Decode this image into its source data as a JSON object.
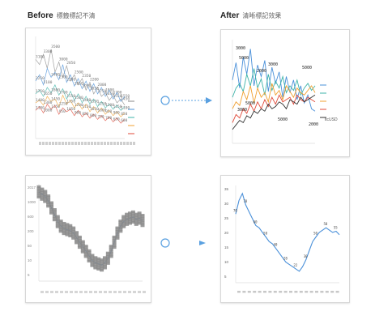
{
  "labels": {
    "before": "Before",
    "before_sub": "標籤標記不清",
    "after": "After",
    "after_sub": "清晰標記效果"
  },
  "colors": {
    "blue": "#4a90d9",
    "gray": "#8a8a8a",
    "orange": "#f0a030",
    "red": "#e04a3a",
    "teal": "#3cb3a8",
    "dark": "#333333",
    "accent": "#5aa0e0"
  },
  "chart_data": [
    {
      "type": "line",
      "id": "before-multi",
      "series": [
        {
          "name": "",
          "values": [
            62,
            58,
            66,
            55,
            70,
            52,
            60,
            48,
            57,
            45,
            50,
            42,
            47,
            38,
            44,
            35,
            40,
            33,
            36,
            30,
            34,
            28,
            31,
            26
          ]
        },
        {
          "name": "",
          "values": [
            45,
            50,
            42,
            55,
            48,
            52,
            46,
            58,
            44,
            50,
            41,
            47,
            39,
            45,
            37,
            43,
            35,
            40,
            33,
            38,
            31,
            36,
            29,
            33
          ]
        },
        {
          "name": "",
          "values": [
            35,
            38,
            33,
            40,
            36,
            42,
            34,
            39,
            31,
            37,
            30,
            35,
            28,
            33,
            27,
            31,
            25,
            29,
            24,
            27,
            23,
            26,
            22,
            25
          ]
        },
        {
          "name": "",
          "values": [
            28,
            30,
            26,
            33,
            29,
            31,
            25,
            34,
            27,
            30,
            24,
            28,
            23,
            27,
            21,
            25,
            20,
            24,
            19,
            22,
            18,
            21,
            17,
            20
          ]
        },
        {
          "name": "",
          "values": [
            22,
            25,
            20,
            27,
            23,
            26,
            19,
            24,
            21,
            23,
            18,
            22,
            17,
            20,
            16,
            19,
            15,
            18,
            14,
            17,
            13,
            16,
            12,
            15
          ]
        }
      ],
      "legend": [
        "",
        "",
        "",
        "",
        ""
      ]
    },
    {
      "type": "line",
      "id": "after-multi",
      "series": [
        {
          "name": "",
          "values": [
            55,
            70,
            48,
            75,
            60,
            82,
            50,
            68,
            58,
            72,
            45,
            66,
            52,
            62,
            40,
            58,
            44,
            55,
            38,
            50,
            35,
            42,
            30,
            28
          ]
        },
        {
          "name": "",
          "values": [
            40,
            48,
            52,
            45,
            60,
            50,
            65,
            48,
            56,
            42,
            60,
            46,
            54,
            48,
            58,
            44,
            50,
            46,
            55,
            42,
            48,
            52,
            46,
            50
          ]
        },
        {
          "name": "",
          "values": [
            30,
            36,
            33,
            45,
            38,
            50,
            35,
            48,
            40,
            44,
            36,
            52,
            42,
            46,
            38,
            50,
            45,
            40,
            48,
            44,
            42,
            46,
            50,
            44
          ]
        },
        {
          "name": "",
          "values": [
            18,
            25,
            22,
            30,
            26,
            34,
            28,
            36,
            30,
            38,
            32,
            40,
            34,
            42,
            36,
            38,
            40,
            34,
            42,
            38,
            36,
            40,
            38,
            36
          ]
        },
        {
          "name": "",
          "values": [
            12,
            16,
            20,
            18,
            24,
            22,
            28,
            26,
            30,
            28,
            34,
            30,
            32,
            36,
            34,
            30,
            38,
            36,
            34,
            40,
            36,
            38,
            40,
            42
          ]
        }
      ],
      "legend": [
        "",
        "",
        "",
        "",
        "ltcUSD"
      ],
      "annotations": [
        "3000",
        "5000",
        "3000",
        "2000",
        "5000",
        "5000",
        "3000",
        "5000",
        "2000"
      ]
    },
    {
      "type": "line",
      "id": "before-single",
      "values": [
        88,
        86,
        84,
        80,
        74,
        68,
        62,
        58,
        56,
        55,
        54,
        52,
        48,
        44,
        40,
        36,
        32,
        28,
        26,
        25,
        24,
        26,
        30,
        36,
        44,
        52,
        58,
        62,
        64,
        65,
        66,
        64,
        65,
        63
      ],
      "ylabels": [
        "2017",
        "1000",
        "600",
        "200",
        "50",
        "10",
        "5"
      ]
    },
    {
      "type": "line",
      "id": "after-single",
      "values": [
        70,
        82,
        88,
        78,
        72,
        66,
        60,
        58,
        54,
        50,
        46,
        44,
        40,
        36,
        32,
        28,
        26,
        24,
        22,
        20,
        24,
        30,
        38,
        46,
        50,
        54,
        56,
        58,
        56,
        54,
        55,
        52
      ],
      "ylabels": [
        "35",
        "30",
        "25",
        "20",
        "15",
        "10",
        "5"
      ]
    }
  ]
}
